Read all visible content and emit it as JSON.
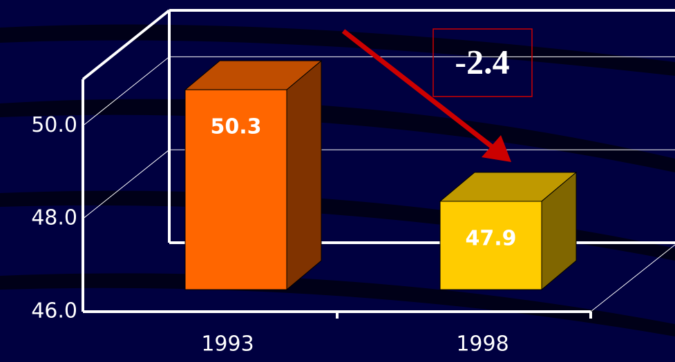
{
  "chart_data": {
    "type": "bar3d",
    "categories": [
      "1993",
      "1998"
    ],
    "values": [
      50.3,
      47.9
    ],
    "colors": [
      "#ff6600",
      "#ffcc00"
    ],
    "ylim": [
      46,
      51
    ],
    "yticks": [
      {
        "value": 46,
        "label": "46.0"
      },
      {
        "value": 48,
        "label": "48.0"
      },
      {
        "value": 50,
        "label": "50.0"
      }
    ],
    "grid": true,
    "annotation": "-2.4"
  }
}
